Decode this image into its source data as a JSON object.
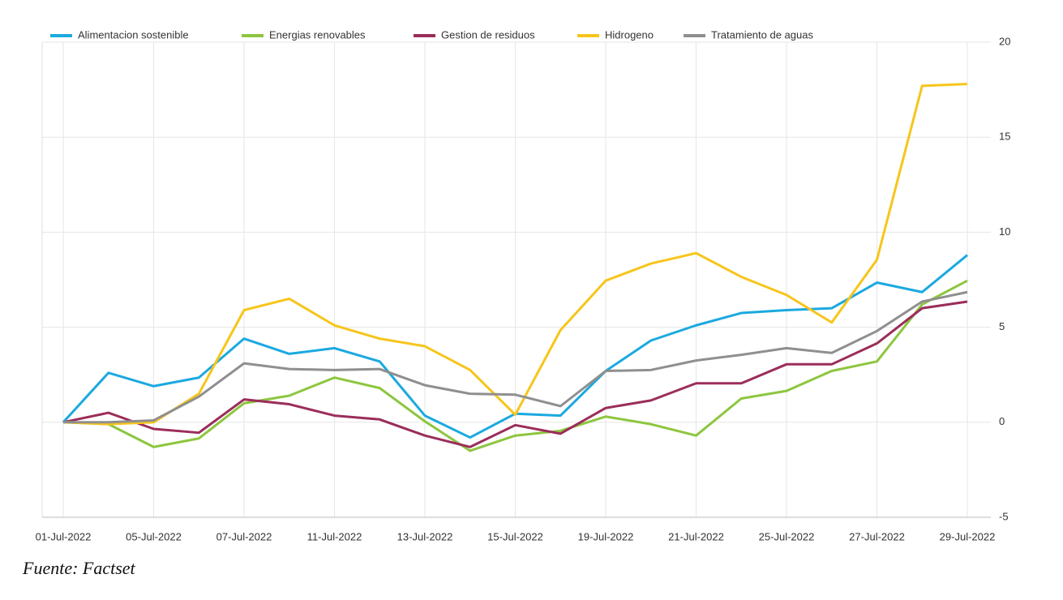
{
  "chart_data": {
    "type": "line",
    "source": "Fuente: Factset",
    "categories": [
      "01-Jul-2022",
      null,
      "05-Jul-2022",
      null,
      "07-Jul-2022",
      null,
      "11-Jul-2022",
      null,
      "13-Jul-2022",
      null,
      "15-Jul-2022",
      null,
      "19-Jul-2022",
      null,
      "21-Jul-2022",
      null,
      "25-Jul-2022",
      null,
      "27-Jul-2022",
      null,
      "29-Jul-2022"
    ],
    "series": [
      {
        "name": "Alimentacion sostenible",
        "color": "#1ba9e0",
        "values": [
          0,
          2.6,
          1.9,
          2.35,
          4.4,
          3.6,
          3.9,
          3.2,
          0.35,
          -0.8,
          0.45,
          0.35,
          2.7,
          4.3,
          5.1,
          5.75,
          5.9,
          6.0,
          7.35,
          6.85,
          8.8
        ]
      },
      {
        "name": "Energias renovables",
        "color": "#8dc63f",
        "values": [
          0,
          -0.1,
          -1.3,
          -0.85,
          1.0,
          1.4,
          2.35,
          1.8,
          0.05,
          -1.5,
          -0.7,
          -0.45,
          0.3,
          -0.1,
          -0.7,
          1.25,
          1.65,
          2.7,
          3.2,
          6.2,
          7.45
        ]
      },
      {
        "name": "Gestion de residuos",
        "color": "#9b2d5a",
        "values": [
          0,
          0.5,
          -0.35,
          -0.55,
          1.2,
          0.95,
          0.35,
          0.15,
          -0.7,
          -1.3,
          -0.15,
          -0.6,
          0.75,
          1.15,
          2.05,
          2.05,
          3.05,
          3.05,
          4.15,
          6.0,
          6.35
        ]
      },
      {
        "name": "Hidrogeno",
        "color": "#f7c51b",
        "values": [
          0,
          -0.1,
          0,
          1.5,
          5.9,
          6.5,
          5.1,
          4.4,
          4.0,
          2.75,
          0.4,
          4.85,
          7.45,
          8.35,
          8.9,
          7.65,
          6.7,
          5.25,
          8.55,
          17.7,
          17.8
        ]
      },
      {
        "name": "Tratamiento de aguas",
        "color": "#8f8f8f",
        "values": [
          0,
          0,
          0.1,
          1.35,
          3.1,
          2.8,
          2.75,
          2.8,
          1.95,
          1.5,
          1.45,
          0.85,
          2.7,
          2.75,
          3.25,
          3.55,
          3.9,
          3.65,
          4.8,
          6.35,
          6.85
        ]
      }
    ],
    "ylim": [
      -5,
      20
    ],
    "yticks": [
      -5,
      0,
      5,
      10,
      15,
      20
    ],
    "grid": true,
    "legend": "top",
    "y_axis_side": "right"
  }
}
